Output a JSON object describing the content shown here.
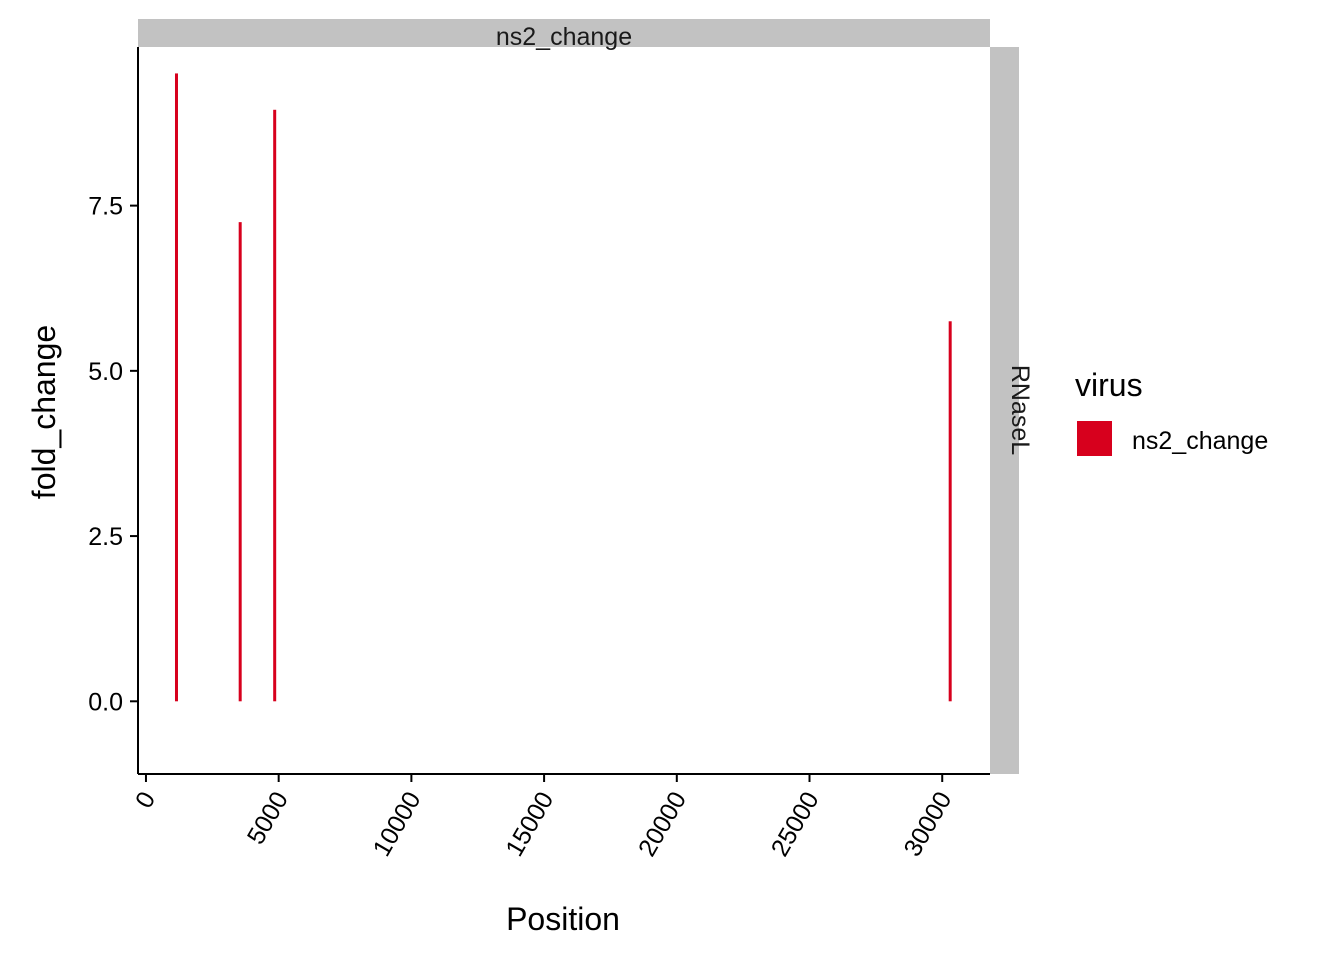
{
  "chart_data": {
    "type": "bar",
    "facet": {
      "column_strip": "ns2_change",
      "row_strip": "RNaseL"
    },
    "xlabel": "Position",
    "ylabel": "fold_change",
    "xlim": [
      -300,
      31800
    ],
    "ylim": [
      -1.1,
      9.9
    ],
    "x_ticks": [
      0,
      5000,
      10000,
      15000,
      20000,
      25000,
      30000
    ],
    "x_tick_labels": [
      "0",
      "5000",
      "10000",
      "15000",
      "20000",
      "25000",
      "30000"
    ],
    "y_ticks": [
      0,
      2.5,
      5,
      7.5
    ],
    "y_tick_labels": [
      "0.0",
      "2.5",
      "5.0",
      "7.5"
    ],
    "series": [
      {
        "name": "ns2_change",
        "color": "#d7001d",
        "x": [
          1150,
          3550,
          4850,
          30300
        ],
        "values": [
          9.5,
          7.25,
          8.95,
          5.75
        ]
      }
    ],
    "legend": {
      "title": "virus",
      "position": "right",
      "entries": [
        "ns2_change"
      ]
    },
    "grid": false
  }
}
